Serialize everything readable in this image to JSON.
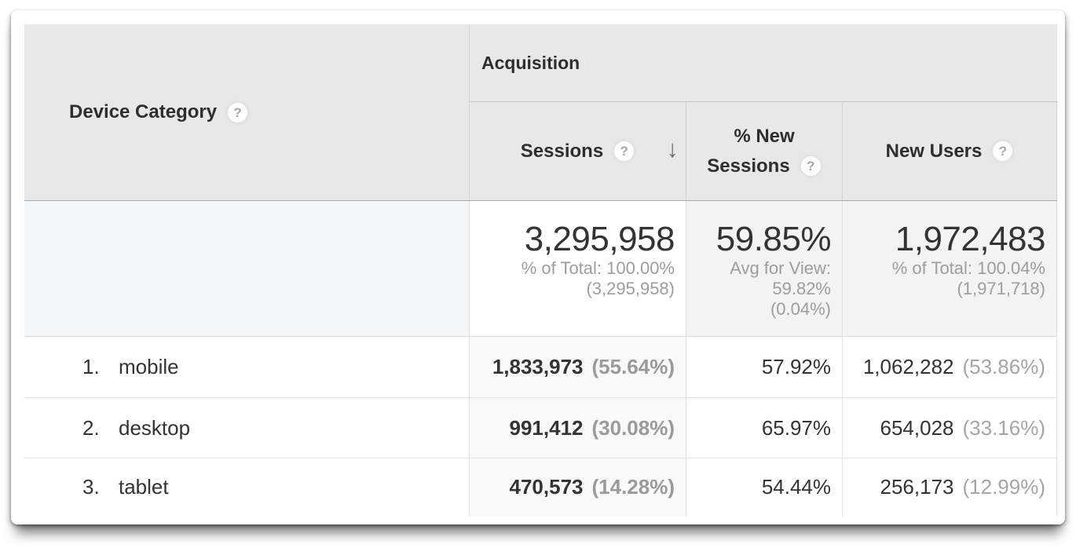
{
  "table": {
    "dimension_header": "Device Category",
    "group_header": "Acquisition",
    "metric_headers": {
      "sessions": "Sessions",
      "pct_new_line1": "% New",
      "pct_new_line2": "Sessions",
      "new_users": "New Users"
    },
    "icons": {
      "help": "?",
      "sort_desc": "↓"
    },
    "summary": {
      "sessions": {
        "value": "3,295,958",
        "sub1": "% of Total: 100.00%",
        "sub2": "(3,295,958)"
      },
      "pct_new_sessions": {
        "value": "59.85%",
        "sub1": "Avg for View:",
        "sub2": "59.82%",
        "sub3": "(0.04%)"
      },
      "new_users": {
        "value": "1,972,483",
        "sub1": "% of Total: 100.04%",
        "sub2": "(1,971,718)"
      }
    },
    "rows": [
      {
        "rank": "1.",
        "name": "mobile",
        "sessions": "1,833,973",
        "sessions_pct": "(55.64%)",
        "pct_new": "57.92%",
        "new_users": "1,062,282",
        "new_users_pct": "(53.86%)"
      },
      {
        "rank": "2.",
        "name": "desktop",
        "sessions": "991,412",
        "sessions_pct": "(30.08%)",
        "pct_new": "65.97%",
        "new_users": "654,028",
        "new_users_pct": "(33.16%)"
      },
      {
        "rank": "3.",
        "name": "tablet",
        "sessions": "470,573",
        "sessions_pct": "(14.28%)",
        "pct_new": "54.44%",
        "new_users": "256,173",
        "new_users_pct": "(12.99%)"
      }
    ],
    "colors": {
      "header_bg": "#e8e8e8",
      "summary_bg": "#f3f3f3",
      "sorted_column_bg": "#f9f9f9",
      "text_dark": "#333333",
      "text_muted": "#9d9d9d"
    }
  },
  "chart_data": {
    "type": "table",
    "dimension": "Device Category",
    "metric_group": "Acquisition",
    "metrics": [
      "Sessions",
      "% New Sessions",
      "New Users"
    ],
    "sort": {
      "column": "Sessions",
      "direction": "desc"
    },
    "totals": {
      "sessions": 3295958,
      "sessions_pct_of_total": 100.0,
      "pct_new_sessions": 59.85,
      "pct_new_sessions_view_avg": 59.82,
      "pct_new_sessions_vs_avg": 0.04,
      "new_users": 1972483,
      "new_users_pct_of_total": 100.04,
      "new_users_total_ref": 1971718
    },
    "rows": [
      {
        "device": "mobile",
        "sessions": 1833973,
        "sessions_pct_of_total": 55.64,
        "pct_new_sessions": 57.92,
        "new_users": 1062282,
        "new_users_pct_of_total": 53.86
      },
      {
        "device": "desktop",
        "sessions": 991412,
        "sessions_pct_of_total": 30.08,
        "pct_new_sessions": 65.97,
        "new_users": 654028,
        "new_users_pct_of_total": 33.16
      },
      {
        "device": "tablet",
        "sessions": 470573,
        "sessions_pct_of_total": 14.28,
        "pct_new_sessions": 54.44,
        "new_users": 256173,
        "new_users_pct_of_total": 12.99
      }
    ]
  }
}
